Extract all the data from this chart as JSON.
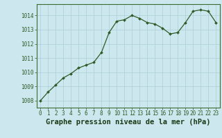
{
  "x": [
    0,
    1,
    2,
    3,
    4,
    5,
    6,
    7,
    8,
    9,
    10,
    11,
    12,
    13,
    14,
    15,
    16,
    17,
    18,
    19,
    20,
    21,
    22,
    23
  ],
  "y": [
    1008.0,
    1008.6,
    1009.1,
    1009.6,
    1009.9,
    1010.3,
    1010.5,
    1010.7,
    1011.4,
    1012.8,
    1013.6,
    1013.7,
    1014.0,
    1013.8,
    1013.5,
    1013.4,
    1013.1,
    1012.7,
    1012.8,
    1013.5,
    1014.3,
    1014.4,
    1014.3,
    1013.5
  ],
  "line_color": "#2d5a27",
  "marker_color": "#2d5a27",
  "bg_color": "#cce8ee",
  "grid_color": "#aacdd8",
  "xlabel": "Graphe pression niveau de la mer (hPa)",
  "ylim_min": 1007.5,
  "ylim_max": 1014.8,
  "xlim_min": -0.5,
  "xlim_max": 23.5,
  "yticks": [
    1008,
    1009,
    1010,
    1011,
    1012,
    1013,
    1014
  ],
  "xticks": [
    0,
    1,
    2,
    3,
    4,
    5,
    6,
    7,
    8,
    9,
    10,
    11,
    12,
    13,
    14,
    15,
    16,
    17,
    18,
    19,
    20,
    21,
    22,
    23
  ],
  "tick_fontsize": 5.5,
  "label_fontsize": 7.5
}
